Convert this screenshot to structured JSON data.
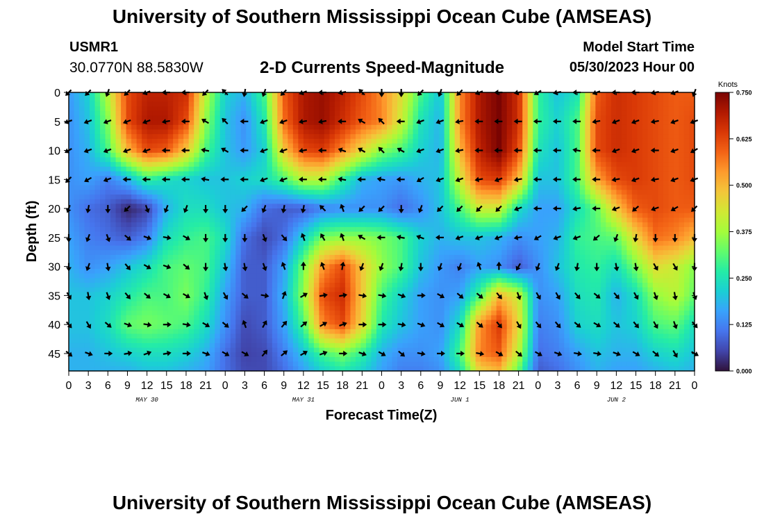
{
  "header": {
    "title": "University of Southern Mississippi Ocean Cube (AMSEAS)",
    "station_id": "USMR1",
    "coordinates": "30.0770N  88.5830W",
    "subtitle": "2-D Currents Speed-Magnitude",
    "model_start_label": "Model Start Time",
    "model_start_value": "05/30/2023 Hour 00"
  },
  "footer": {
    "title": "University of Southern Mississippi Ocean Cube (AMSEAS)"
  },
  "chart_data": {
    "type": "heatmap",
    "title": "2-D Currents Speed-Magnitude",
    "xlabel": "Forecast Time(Z)",
    "ylabel": "Depth (ft)",
    "x_range": [
      0,
      96
    ],
    "y_range": [
      0,
      48
    ],
    "y_inverted": true,
    "x_tick_values": [
      0,
      3,
      6,
      9,
      12,
      15,
      18,
      21,
      24,
      27,
      30,
      33,
      36,
      39,
      42,
      45,
      48,
      51,
      54,
      57,
      60,
      63,
      66,
      69,
      72,
      75,
      78,
      81,
      84,
      87,
      90,
      93,
      96
    ],
    "x_tick_labels": [
      "0",
      "3",
      "6",
      "9",
      "12",
      "15",
      "18",
      "21",
      "0",
      "3",
      "6",
      "9",
      "12",
      "15",
      "18",
      "21",
      "0",
      "3",
      "6",
      "9",
      "12",
      "15",
      "18",
      "21",
      "0",
      "3",
      "6",
      "9",
      "12",
      "15",
      "18",
      "21",
      "0"
    ],
    "day_labels": [
      {
        "x": 12,
        "label": "MAY 30"
      },
      {
        "x": 36,
        "label": "MAY 31"
      },
      {
        "x": 60,
        "label": "JUN 1"
      },
      {
        "x": 84,
        "label": "JUN 2"
      }
    ],
    "y_tick_values": [
      0,
      5,
      10,
      15,
      20,
      25,
      30,
      35,
      40,
      45
    ],
    "y_tick_labels": [
      "0",
      "5",
      "10",
      "15",
      "20",
      "25",
      "30",
      "35",
      "40",
      "45"
    ],
    "colorbar": {
      "label": "Knots",
      "min": 0,
      "max": 0.75,
      "ticks": [
        0.0,
        0.125,
        0.25,
        0.375,
        0.5,
        0.625,
        0.75
      ],
      "tick_labels": [
        "0.000",
        "0.125",
        "0.250",
        "0.375",
        "0.500",
        "0.625",
        "0.750"
      ],
      "colors": [
        "#30123b",
        "#4145ab",
        "#4675ed",
        "#39a2fc",
        "#1bcfd4",
        "#24eca6",
        "#61fc6c",
        "#a4fc3b",
        "#d1e834",
        "#f3c63a",
        "#fe9b2d",
        "#f36315",
        "#d93806",
        "#b11901",
        "#7a0402"
      ]
    },
    "speed_grid": {
      "units": "knots",
      "hours": [
        0,
        3,
        6,
        9,
        12,
        15,
        18,
        21,
        24,
        27,
        30,
        33,
        36,
        39,
        42,
        45,
        48,
        51,
        54,
        57,
        60,
        63,
        66,
        69,
        72,
        75,
        78,
        81,
        84,
        87,
        90,
        93,
        96
      ],
      "depths": [
        0,
        5,
        10,
        15,
        20,
        25,
        30,
        35,
        40,
        45,
        48
      ],
      "values": [
        [
          0.15,
          0.22,
          0.4,
          0.62,
          0.68,
          0.68,
          0.66,
          0.4,
          0.22,
          0.18,
          0.3,
          0.6,
          0.7,
          0.72,
          0.68,
          0.62,
          0.55,
          0.45,
          0.3,
          0.2,
          0.55,
          0.7,
          0.75,
          0.66,
          0.28,
          0.2,
          0.25,
          0.6,
          0.66,
          0.64,
          0.62,
          0.6,
          0.6
        ],
        [
          0.14,
          0.2,
          0.35,
          0.62,
          0.7,
          0.7,
          0.62,
          0.36,
          0.2,
          0.14,
          0.26,
          0.58,
          0.7,
          0.72,
          0.66,
          0.6,
          0.56,
          0.42,
          0.25,
          0.18,
          0.55,
          0.7,
          0.75,
          0.66,
          0.28,
          0.22,
          0.3,
          0.62,
          0.66,
          0.64,
          0.62,
          0.6,
          0.62
        ],
        [
          0.14,
          0.18,
          0.3,
          0.5,
          0.62,
          0.6,
          0.48,
          0.3,
          0.2,
          0.15,
          0.22,
          0.48,
          0.62,
          0.64,
          0.55,
          0.45,
          0.35,
          0.3,
          0.22,
          0.18,
          0.5,
          0.68,
          0.75,
          0.62,
          0.25,
          0.2,
          0.3,
          0.62,
          0.66,
          0.64,
          0.62,
          0.6,
          0.62
        ],
        [
          0.14,
          0.16,
          0.12,
          0.18,
          0.28,
          0.24,
          0.22,
          0.2,
          0.2,
          0.22,
          0.24,
          0.3,
          0.4,
          0.4,
          0.28,
          0.18,
          0.16,
          0.15,
          0.18,
          0.2,
          0.42,
          0.62,
          0.64,
          0.5,
          0.2,
          0.2,
          0.3,
          0.52,
          0.62,
          0.64,
          0.62,
          0.6,
          0.62
        ],
        [
          0.14,
          0.1,
          0.08,
          0.02,
          0.05,
          0.18,
          0.24,
          0.24,
          0.2,
          0.18,
          0.1,
          0.08,
          0.08,
          0.12,
          0.14,
          0.14,
          0.14,
          0.1,
          0.14,
          0.2,
          0.3,
          0.42,
          0.42,
          0.24,
          0.16,
          0.16,
          0.24,
          0.32,
          0.48,
          0.6,
          0.62,
          0.6,
          0.6
        ],
        [
          0.16,
          0.12,
          0.1,
          0.08,
          0.12,
          0.24,
          0.28,
          0.3,
          0.24,
          0.1,
          0.06,
          0.1,
          0.22,
          0.34,
          0.36,
          0.36,
          0.34,
          0.3,
          0.22,
          0.18,
          0.2,
          0.2,
          0.18,
          0.14,
          0.16,
          0.18,
          0.28,
          0.3,
          0.32,
          0.46,
          0.58,
          0.56,
          0.5
        ],
        [
          0.18,
          0.14,
          0.16,
          0.2,
          0.24,
          0.3,
          0.32,
          0.3,
          0.2,
          0.08,
          0.08,
          0.16,
          0.34,
          0.54,
          0.62,
          0.48,
          0.36,
          0.3,
          0.2,
          0.15,
          0.12,
          0.16,
          0.14,
          0.08,
          0.14,
          0.2,
          0.26,
          0.28,
          0.24,
          0.34,
          0.45,
          0.42,
          0.35
        ],
        [
          0.2,
          0.2,
          0.22,
          0.26,
          0.3,
          0.3,
          0.34,
          0.28,
          0.16,
          0.08,
          0.08,
          0.18,
          0.36,
          0.62,
          0.66,
          0.48,
          0.3,
          0.22,
          0.16,
          0.14,
          0.16,
          0.3,
          0.5,
          0.42,
          0.14,
          0.16,
          0.24,
          0.26,
          0.18,
          0.24,
          0.36,
          0.4,
          0.32
        ],
        [
          0.2,
          0.2,
          0.24,
          0.32,
          0.34,
          0.32,
          0.3,
          0.24,
          0.14,
          0.06,
          0.08,
          0.16,
          0.3,
          0.56,
          0.62,
          0.46,
          0.26,
          0.2,
          0.16,
          0.14,
          0.24,
          0.54,
          0.64,
          0.46,
          0.12,
          0.14,
          0.22,
          0.24,
          0.2,
          0.22,
          0.3,
          0.32,
          0.24
        ],
        [
          0.18,
          0.18,
          0.2,
          0.22,
          0.24,
          0.24,
          0.22,
          0.18,
          0.1,
          0.05,
          0.06,
          0.12,
          0.2,
          0.3,
          0.34,
          0.28,
          0.18,
          0.14,
          0.14,
          0.16,
          0.3,
          0.56,
          0.6,
          0.4,
          0.1,
          0.12,
          0.16,
          0.2,
          0.18,
          0.18,
          0.22,
          0.24,
          0.2
        ],
        [
          0.18,
          0.18,
          0.18,
          0.18,
          0.2,
          0.2,
          0.18,
          0.16,
          0.1,
          0.06,
          0.06,
          0.1,
          0.16,
          0.22,
          0.26,
          0.22,
          0.16,
          0.12,
          0.12,
          0.14,
          0.24,
          0.46,
          0.5,
          0.32,
          0.08,
          0.1,
          0.14,
          0.18,
          0.16,
          0.16,
          0.18,
          0.2,
          0.18
        ]
      ]
    },
    "direction_grid": {
      "units": "degrees clockwise from north (toward)",
      "hours": [
        0,
        3,
        6,
        9,
        12,
        15,
        18,
        21,
        24,
        27,
        30,
        33,
        36,
        39,
        42,
        45,
        48,
        51,
        54,
        57,
        60,
        63,
        66,
        69,
        72,
        75,
        78,
        81,
        84,
        87,
        90,
        93,
        96
      ],
      "depths": [
        0,
        5,
        10,
        15,
        20,
        25,
        30,
        35,
        40,
        45
      ],
      "values": [
        [
          225,
          225,
          200,
          225,
          250,
          270,
          270,
          225,
          315,
          190,
          200,
          225,
          250,
          270,
          260,
          315,
          180,
          180,
          225,
          200,
          225,
          250,
          270,
          260,
          240,
          260,
          270,
          250,
          270,
          270,
          260,
          250,
          200
        ],
        [
          250,
          250,
          250,
          250,
          250,
          260,
          270,
          300,
          315,
          270,
          250,
          250,
          260,
          260,
          270,
          300,
          315,
          270,
          250,
          250,
          260,
          270,
          270,
          270,
          270,
          270,
          270,
          260,
          250,
          250,
          260,
          250,
          250
        ],
        [
          240,
          250,
          250,
          250,
          250,
          270,
          270,
          280,
          300,
          270,
          250,
          250,
          260,
          270,
          290,
          300,
          315,
          300,
          250,
          250,
          260,
          270,
          270,
          270,
          270,
          270,
          280,
          270,
          250,
          250,
          270,
          250,
          240
        ],
        [
          225,
          240,
          250,
          270,
          270,
          270,
          270,
          280,
          270,
          270,
          250,
          250,
          270,
          270,
          280,
          270,
          280,
          270,
          240,
          250,
          250,
          260,
          250,
          260,
          270,
          270,
          270,
          270,
          260,
          250,
          260,
          250,
          250
        ],
        [
          200,
          190,
          180,
          225,
          160,
          200,
          200,
          180,
          180,
          225,
          200,
          190,
          190,
          315,
          340,
          225,
          225,
          180,
          200,
          225,
          225,
          225,
          225,
          250,
          270,
          270,
          260,
          270,
          250,
          230,
          250,
          240,
          225
        ],
        [
          180,
          200,
          160,
          130,
          110,
          100,
          120,
          180,
          180,
          180,
          160,
          140,
          340,
          330,
          340,
          300,
          270,
          280,
          290,
          270,
          250,
          250,
          250,
          260,
          240,
          250,
          250,
          230,
          200,
          190,
          180,
          180,
          180
        ],
        [
          180,
          200,
          170,
          140,
          120,
          110,
          130,
          180,
          170,
          170,
          160,
          340,
          360,
          340,
          10,
          200,
          200,
          190,
          180,
          200,
          200,
          340,
          360,
          210,
          200,
          200,
          190,
          180,
          170,
          170,
          150,
          150,
          180
        ],
        [
          150,
          170,
          160,
          140,
          130,
          120,
          120,
          160,
          150,
          130,
          100,
          20,
          60,
          80,
          80,
          100,
          100,
          110,
          90,
          120,
          130,
          130,
          140,
          160,
          150,
          150,
          140,
          130,
          140,
          150,
          160,
          170,
          160
        ],
        [
          140,
          150,
          130,
          110,
          100,
          90,
          100,
          120,
          130,
          340,
          30,
          40,
          50,
          60,
          70,
          90,
          90,
          100,
          110,
          120,
          120,
          130,
          140,
          150,
          140,
          140,
          130,
          120,
          130,
          140,
          150,
          160,
          140
        ],
        [
          130,
          110,
          90,
          80,
          70,
          80,
          90,
          110,
          120,
          120,
          40,
          50,
          60,
          70,
          90,
          110,
          120,
          130,
          100,
          90,
          90,
          100,
          120,
          130,
          120,
          110,
          100,
          100,
          110,
          120,
          130,
          150,
          120
        ]
      ]
    }
  }
}
